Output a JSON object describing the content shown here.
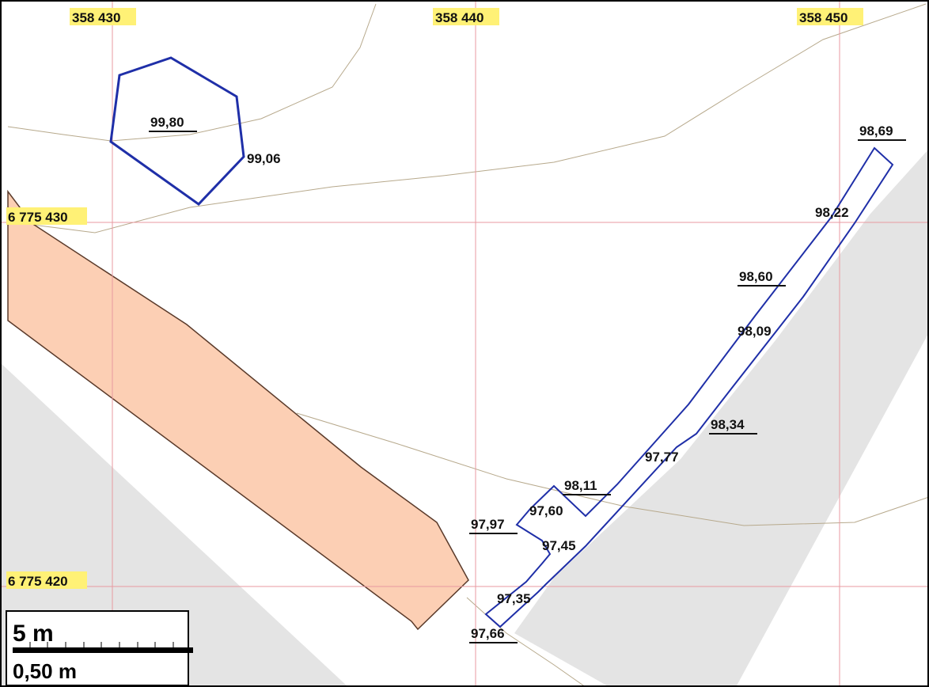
{
  "colors": {
    "background": "#ffffff",
    "grid_line": "#e89aa0",
    "coord_highlight": "#fff176",
    "road_gray": "#e4e4e4",
    "orange_area_fill": "#fccfb4",
    "orange_area_stroke": "#5a3a2a",
    "contour_line": "#b7a98c",
    "feature_outline": "#1f2fa8",
    "scale_box_border": "#000000"
  },
  "grid_labels": {
    "easting": [
      "358 430",
      "358 440",
      "358 450"
    ],
    "northing": [
      "6 775 430",
      "6 775 420"
    ]
  },
  "elevations": {
    "e1": "99,80",
    "e2": "99,06",
    "e3": "98,69",
    "e4": "98,22",
    "e5": "98,60",
    "e6": "98,09",
    "e7": "98,34",
    "e8": "97,77",
    "e9": "98,11",
    "e10": "97,60",
    "e11": "97,97",
    "e12": "97,45",
    "e13": "97,35",
    "e14": "97,66"
  },
  "scale": {
    "primary": "5 m",
    "secondary": "0,50 m"
  }
}
